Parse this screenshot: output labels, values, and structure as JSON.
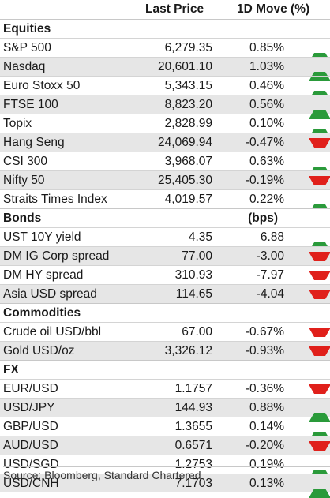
{
  "header": {
    "last_price": "Last Price",
    "move": "1D Move (%)"
  },
  "colors": {
    "up": "#2a9a3a",
    "down": "#e0201b",
    "shade": "#e6e6e6"
  },
  "sections": [
    {
      "title": "Equities",
      "unit": "",
      "rows": [
        {
          "name": "S&P 500",
          "price": "6,279.35",
          "move": "0.85%",
          "dir": "up"
        },
        {
          "name": "Nasdaq",
          "price": "20,601.10",
          "move": "1.03%",
          "dir": "up"
        },
        {
          "name": "Euro Stoxx 50",
          "price": "5,343.15",
          "move": "0.46%",
          "dir": "up"
        },
        {
          "name": "FTSE 100",
          "price": "8,823.20",
          "move": "0.56%",
          "dir": "up"
        },
        {
          "name": "Topix",
          "price": "2,828.99",
          "move": "0.10%",
          "dir": "up"
        },
        {
          "name": "Hang Seng",
          "price": "24,069.94",
          "move": "-0.47%",
          "dir": "down"
        },
        {
          "name": "CSI 300",
          "price": "3,968.07",
          "move": "0.63%",
          "dir": "up"
        },
        {
          "name": "Nifty 50",
          "price": "25,405.30",
          "move": "-0.19%",
          "dir": "down"
        },
        {
          "name": "Straits Times Index",
          "price": "4,019.57",
          "move": "0.22%",
          "dir": "up"
        }
      ]
    },
    {
      "title": "Bonds",
      "unit": "(bps)",
      "rows": [
        {
          "name": "UST 10Y yield",
          "price": "4.35",
          "move": "6.88",
          "dir": "up"
        },
        {
          "name": "DM IG Corp spread",
          "price": "77.00",
          "move": "-3.00",
          "dir": "down"
        },
        {
          "name": "DM HY spread",
          "price": "310.93",
          "move": "-7.97",
          "dir": "down"
        },
        {
          "name": "Asia USD spread",
          "price": "114.65",
          "move": "-4.04",
          "dir": "down"
        }
      ]
    },
    {
      "title": "Commodities",
      "unit": "",
      "rows": [
        {
          "name": "Crude oil USD/bbl",
          "price": "67.00",
          "move": "-0.67%",
          "dir": "down"
        },
        {
          "name": "Gold USD/oz",
          "price": "3,326.12",
          "move": "-0.93%",
          "dir": "down"
        }
      ]
    },
    {
      "title": "FX",
      "unit": "",
      "rows": [
        {
          "name": "EUR/USD",
          "price": "1.1757",
          "move": "-0.36%",
          "dir": "down"
        },
        {
          "name": "USD/JPY",
          "price": "144.93",
          "move": "0.88%",
          "dir": "up"
        },
        {
          "name": "GBP/USD",
          "price": "1.3655",
          "move": "0.14%",
          "dir": "up"
        },
        {
          "name": "AUD/USD",
          "price": "0.6571",
          "move": "-0.20%",
          "dir": "down"
        },
        {
          "name": "USD/SGD",
          "price": "1.2753",
          "move": "0.19%",
          "dir": "up"
        },
        {
          "name": "USD/CNH",
          "price": "7.1703",
          "move": "0.13%",
          "dir": "up"
        }
      ]
    }
  ],
  "source": "Source: Bloomberg, Standard Chartered"
}
